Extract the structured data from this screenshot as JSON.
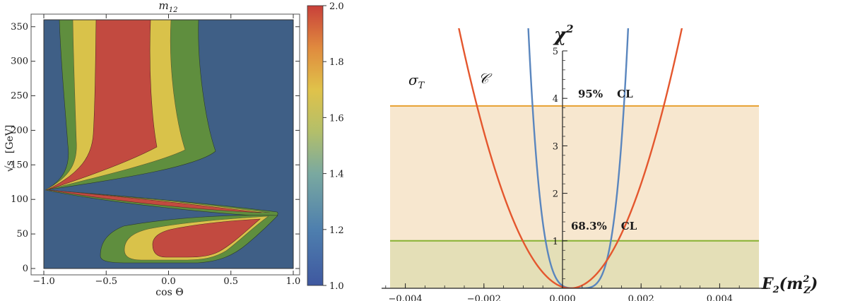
{
  "chart_data": [
    {
      "type": "heatmap",
      "title": "m",
      "title_sub": "12",
      "xlabel": "cos Θ",
      "ylabel_root": "√s",
      "ylabel_unit": "[GeV]",
      "xlim": [
        -1.0,
        1.0
      ],
      "ylim": [
        0,
        360
      ],
      "xticks": [
        -1.0,
        -0.5,
        0.0,
        0.5,
        1.0
      ],
      "xtick_labels": [
        "−1.0",
        "−0.5",
        "0.0",
        "0.5",
        "1.0"
      ],
      "yticks": [
        0,
        50,
        100,
        150,
        200,
        250,
        300,
        350
      ],
      "ytick_labels": [
        "0",
        "50",
        "100",
        "150",
        "200",
        "250",
        "300",
        "350"
      ],
      "colorbar": {
        "range": [
          1.0,
          2.0
        ],
        "ticks": [
          1.0,
          1.2,
          1.4,
          1.6,
          1.8,
          2.0
        ],
        "tick_labels": [
          "1.0",
          "1.2",
          "1.4",
          "1.6",
          "1.8",
          "2.0"
        ]
      },
      "levels": [
        {
          "min": 1.0,
          "max": 1.4,
          "color": "#3f5f86"
        },
        {
          "min": 1.4,
          "max": 1.6,
          "color": "#5f8e3e"
        },
        {
          "min": 1.6,
          "max": 1.8,
          "color": "#d9c24a"
        },
        {
          "min": 1.8,
          "max": 2.0,
          "color": "#c24a40"
        }
      ]
    },
    {
      "type": "line",
      "ylabel_sym": "χ",
      "ylabel_sup": "2",
      "xlabel_main": "F",
      "xlabel_sub": "2",
      "xlabel_arg": "(m",
      "xlabel_arg_sup": "2",
      "xlabel_arg_sub": "Z",
      "xlabel_close": ")",
      "xlim": [
        -0.0045,
        0.005
      ],
      "ylim": [
        0,
        5
      ],
      "xticks": [
        -0.004,
        -0.002,
        0.0,
        0.002,
        0.004
      ],
      "xtick_labels": [
        "−0.004",
        "−0.002",
        "0.000",
        "0.002",
        "0.004"
      ],
      "yticks": [
        1,
        2,
        3,
        4,
        5
      ],
      "ytick_labels": [
        "1",
        "2",
        "3",
        "4",
        "5"
      ],
      "series": [
        {
          "name": "σ",
          "name_sub": "T",
          "color": "#5a86be",
          "shape": "quartic",
          "center": 0.0004,
          "a": 2100000000.0
        },
        {
          "name": "𝒞",
          "color": "#e4572e",
          "shape": "quadratic",
          "center": 0.0002,
          "a": 680000.0
        }
      ],
      "bands": [
        {
          "label": "95%",
          "label2": "CL",
          "y": 3.84,
          "line_color": "#e8a53a",
          "fill": "#f7e7cf"
        },
        {
          "label": "68.3%",
          "label2": "CL",
          "y": 1.0,
          "line_color": "#8db43a",
          "fill": "#e4dfb7"
        }
      ]
    }
  ]
}
